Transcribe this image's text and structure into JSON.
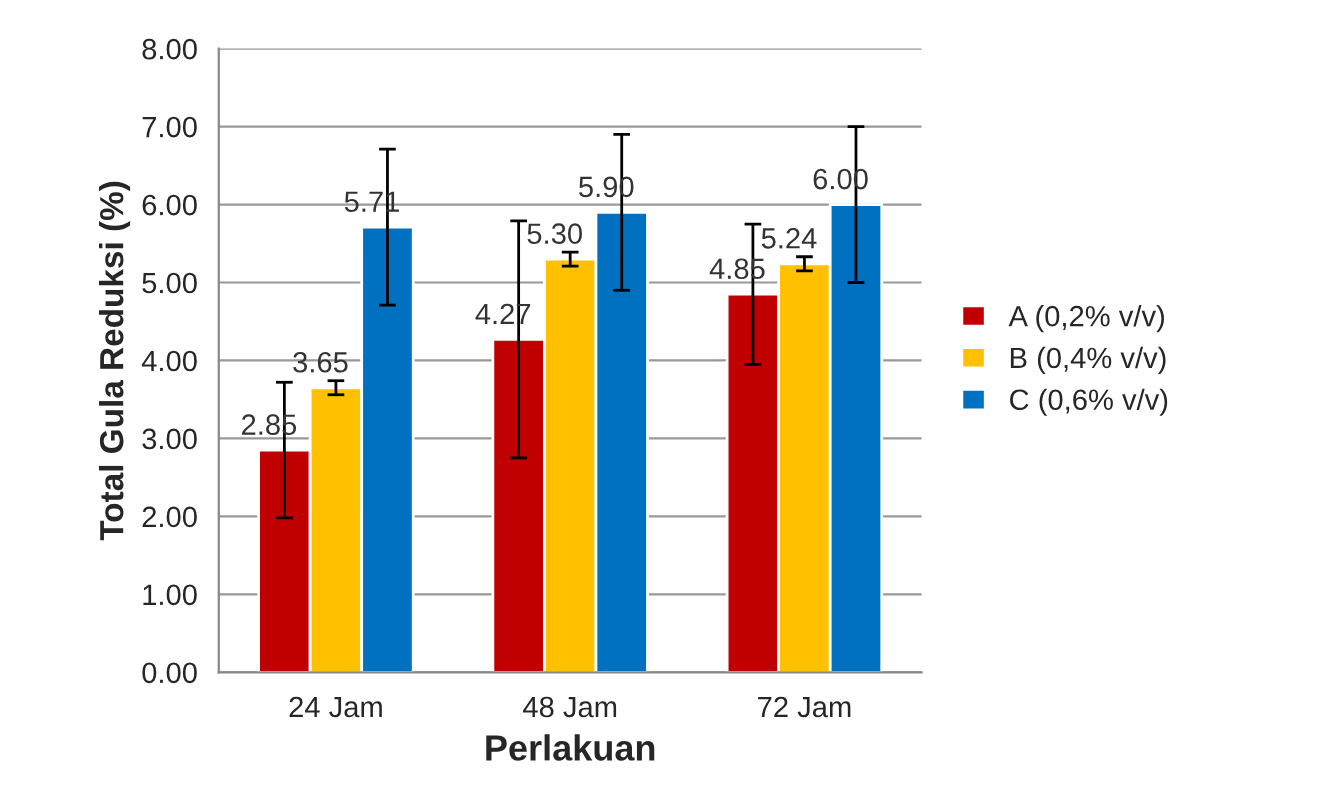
{
  "chart_data": {
    "type": "bar",
    "xlabel": "Perlakuan",
    "ylabel": "Total Gula Reduksi (%)",
    "categories": [
      "24 Jam",
      "48 Jam",
      "72 Jam"
    ],
    "series": [
      {
        "name": "A (0,2% v/v)",
        "color": "#c00000",
        "values": [
          2.85,
          4.27,
          4.85
        ],
        "value_labels": [
          "2.85",
          "4.27",
          "4.85"
        ],
        "errors": [
          0.87,
          1.52,
          0.9
        ]
      },
      {
        "name": "B (0,4% v/v)",
        "color": "#ffc000",
        "values": [
          3.65,
          5.3,
          5.24
        ],
        "value_labels": [
          "3.65",
          "5.30",
          "5.24"
        ],
        "errors": [
          0.09,
          0.09,
          0.09
        ]
      },
      {
        "name": "C (0,6% v/v)",
        "color": "#0070c0",
        "values": [
          5.71,
          5.9,
          6.0
        ],
        "value_labels": [
          "5.71",
          "5.90",
          "6.00"
        ],
        "errors": [
          1.0,
          1.0,
          1.0
        ]
      }
    ],
    "ylim": [
      0,
      8
    ],
    "yticks": [
      {
        "value": 0,
        "label": "0.00"
      },
      {
        "value": 1,
        "label": "1.00"
      },
      {
        "value": 2,
        "label": "2.00"
      },
      {
        "value": 3,
        "label": "3.00"
      },
      {
        "value": 4,
        "label": "4.00"
      },
      {
        "value": 5,
        "label": "5.00"
      },
      {
        "value": 6,
        "label": "6.00"
      },
      {
        "value": 7,
        "label": "7.00"
      },
      {
        "value": 8,
        "label": "8.00"
      }
    ],
    "grid": "y",
    "legend": "right"
  }
}
